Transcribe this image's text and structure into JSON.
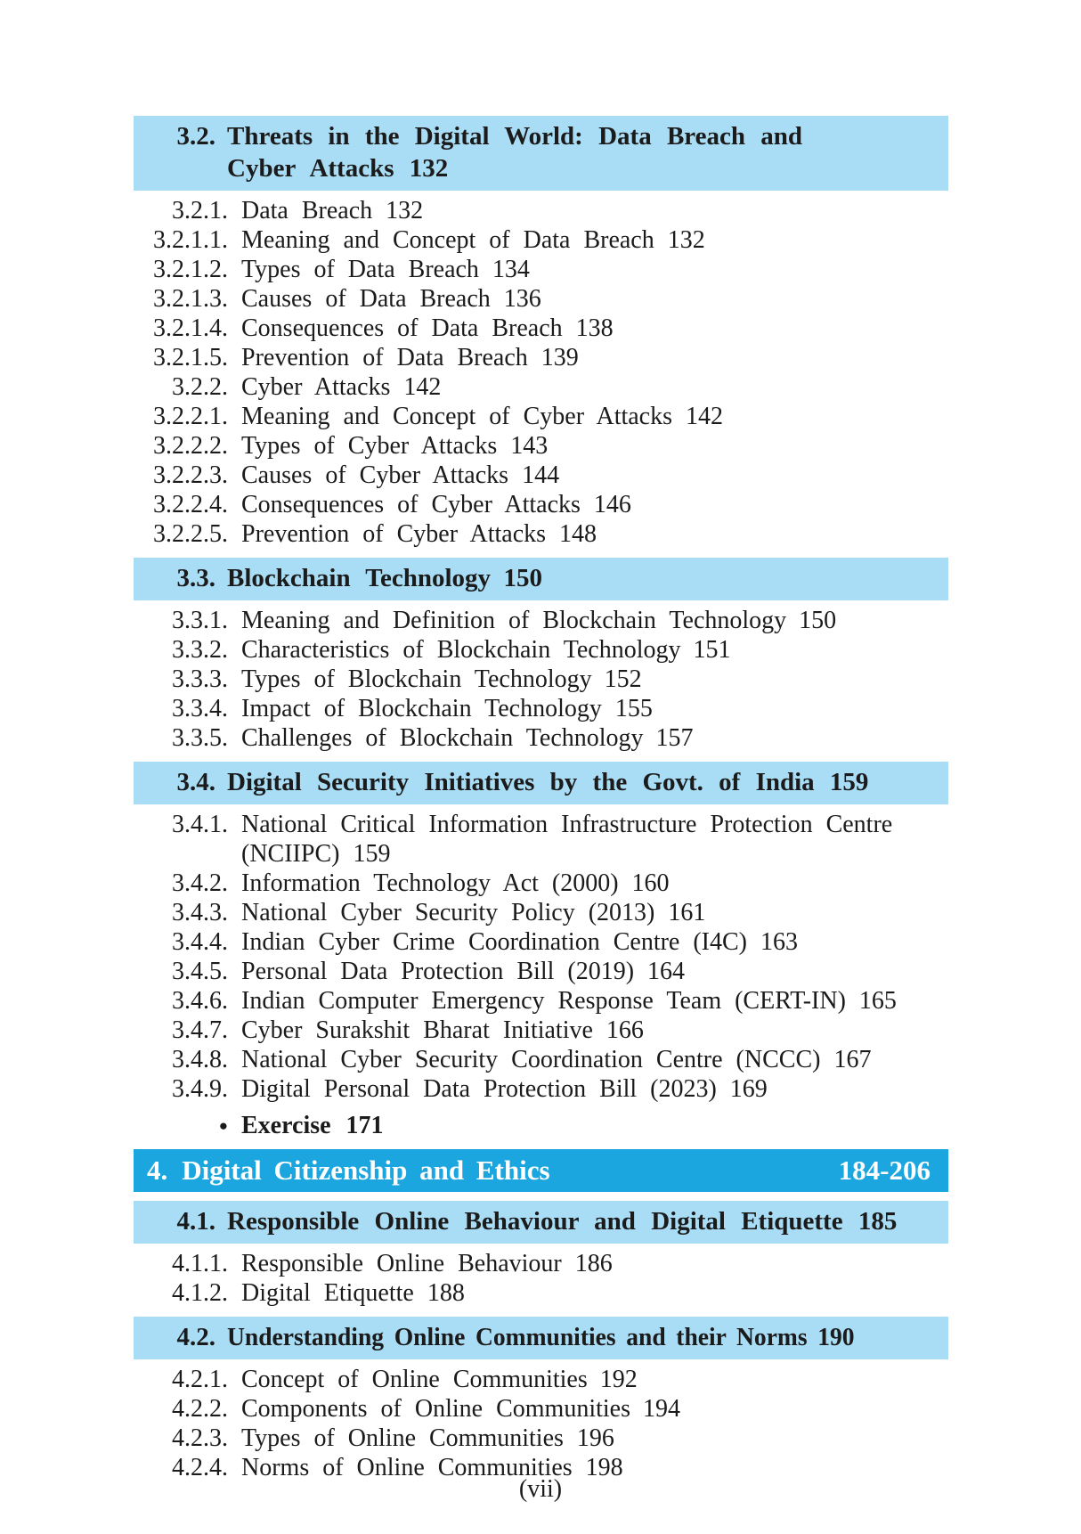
{
  "colors": {
    "section_highlight": "#a9ddf5",
    "chapter_bar": "#1ca6e0",
    "chapter_text": "#ffffff",
    "body_text": "#1b1b1b"
  },
  "footer": {
    "page_label": "(vii)"
  },
  "toc": {
    "entries": [
      {
        "type": "section",
        "num": "3.2.",
        "text": "Threats in the Digital World: Data Breach and",
        "text2": "Cyber Attacks 132"
      },
      {
        "type": "item",
        "num": "3.2.1.",
        "text": "Data Breach 132"
      },
      {
        "type": "item",
        "num": "3.2.1.1.",
        "text": "Meaning and Concept of Data Breach 132"
      },
      {
        "type": "item",
        "num": "3.2.1.2.",
        "text": "Types of Data Breach 134"
      },
      {
        "type": "item",
        "num": "3.2.1.3.",
        "text": "Causes of Data Breach 136"
      },
      {
        "type": "item",
        "num": "3.2.1.4.",
        "text": "Consequences of Data Breach 138"
      },
      {
        "type": "item",
        "num": "3.2.1.5.",
        "text": "Prevention of Data Breach 139"
      },
      {
        "type": "item",
        "num": "3.2.2.",
        "text": "Cyber Attacks 142"
      },
      {
        "type": "item",
        "num": "3.2.2.1.",
        "text": "Meaning and Concept of Cyber Attacks 142"
      },
      {
        "type": "item",
        "num": "3.2.2.2.",
        "text": "Types of Cyber Attacks 143"
      },
      {
        "type": "item",
        "num": "3.2.2.3.",
        "text": "Causes of Cyber Attacks 144"
      },
      {
        "type": "item",
        "num": "3.2.2.4.",
        "text": "Consequences of Cyber Attacks 146"
      },
      {
        "type": "item",
        "num": "3.2.2.5.",
        "text": "Prevention of Cyber Attacks 148"
      },
      {
        "type": "section",
        "num": "3.3.",
        "text": "Blockchain Technology 150"
      },
      {
        "type": "item",
        "num": "3.3.1.",
        "text": "Meaning and Definition of Blockchain Technology 150"
      },
      {
        "type": "item",
        "num": "3.3.2.",
        "text": "Characteristics of Blockchain Technology 151"
      },
      {
        "type": "item",
        "num": "3.3.3.",
        "text": "Types of Blockchain Technology 152"
      },
      {
        "type": "item",
        "num": "3.3.4.",
        "text": "Impact of Blockchain Technology 155"
      },
      {
        "type": "item",
        "num": "3.3.5.",
        "text": "Challenges of Blockchain Technology 157"
      },
      {
        "type": "section",
        "num": "3.4.",
        "text": "Digital Security Initiatives by the Govt. of India 159"
      },
      {
        "type": "item",
        "num": "3.4.1.",
        "text": "National Critical Information Infrastructure Protection Centre",
        "text2": "(NCIIPC) 159"
      },
      {
        "type": "item",
        "num": "3.4.2.",
        "text": "Information Technology Act (2000) 160"
      },
      {
        "type": "item",
        "num": "3.4.3.",
        "text": "National Cyber Security Policy (2013) 161"
      },
      {
        "type": "item",
        "num": "3.4.4.",
        "text": "Indian Cyber Crime Coordination Centre (I4C) 163"
      },
      {
        "type": "item",
        "num": "3.4.5.",
        "text": "Personal Data Protection Bill (2019) 164"
      },
      {
        "type": "item",
        "num": "3.4.6.",
        "text": "Indian Computer Emergency Response Team (CERT-IN) 165"
      },
      {
        "type": "item",
        "num": "3.4.7.",
        "text": "Cyber Surakshit Bharat Initiative 166"
      },
      {
        "type": "item",
        "num": "3.4.8.",
        "text": "National Cyber Security Coordination Centre (NCCC) 167"
      },
      {
        "type": "item",
        "num": "3.4.9.",
        "text": "Digital Personal Data Protection Bill (2023) 169"
      },
      {
        "type": "bullet",
        "bullet": "●",
        "text": "Exercise 171"
      },
      {
        "type": "chapter",
        "num": "4.",
        "text": "Digital Citizenship and Ethics",
        "pages": "184-206"
      },
      {
        "type": "section",
        "num": "4.1.",
        "text": "Responsible Online Behaviour and Digital Etiquette 185"
      },
      {
        "type": "item",
        "num": "4.1.1.",
        "text": "Responsible Online Behaviour 186"
      },
      {
        "type": "item",
        "num": "4.1.2.",
        "text": "Digital Etiquette 188"
      },
      {
        "type": "section",
        "num": "4.2.",
        "text": "Understanding Online Communities and their Norms 190"
      },
      {
        "type": "item",
        "num": "4.2.1.",
        "text": "Concept of Online Communities 192"
      },
      {
        "type": "item",
        "num": "4.2.2.",
        "text": "Components of Online Communities 194"
      },
      {
        "type": "item",
        "num": "4.2.3.",
        "text": "Types of Online Communities 196"
      },
      {
        "type": "item",
        "num": "4.2.4.",
        "text": "Norms of Online Communities 198"
      }
    ]
  }
}
